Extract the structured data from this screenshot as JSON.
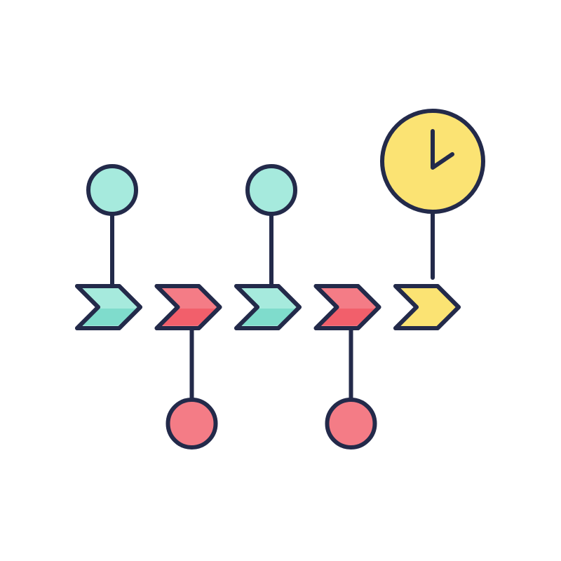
{
  "diagram": {
    "name": "timeline-icon",
    "colors": {
      "outline": "#232a4a",
      "teal": "#a6eadd",
      "teal_shade": "#7fdccc",
      "pink": "#f47c86",
      "pink_shade": "#f25f6b",
      "yellow": "#fbe373",
      "background": "#ffffff"
    },
    "steps": [
      {
        "id": "step-1",
        "color": "teal",
        "marker": "above"
      },
      {
        "id": "step-2",
        "color": "pink",
        "marker": "below"
      },
      {
        "id": "step-3",
        "color": "teal",
        "marker": "above"
      },
      {
        "id": "step-4",
        "color": "pink",
        "marker": "below"
      },
      {
        "id": "step-5",
        "color": "yellow",
        "marker": "clock"
      }
    ]
  }
}
